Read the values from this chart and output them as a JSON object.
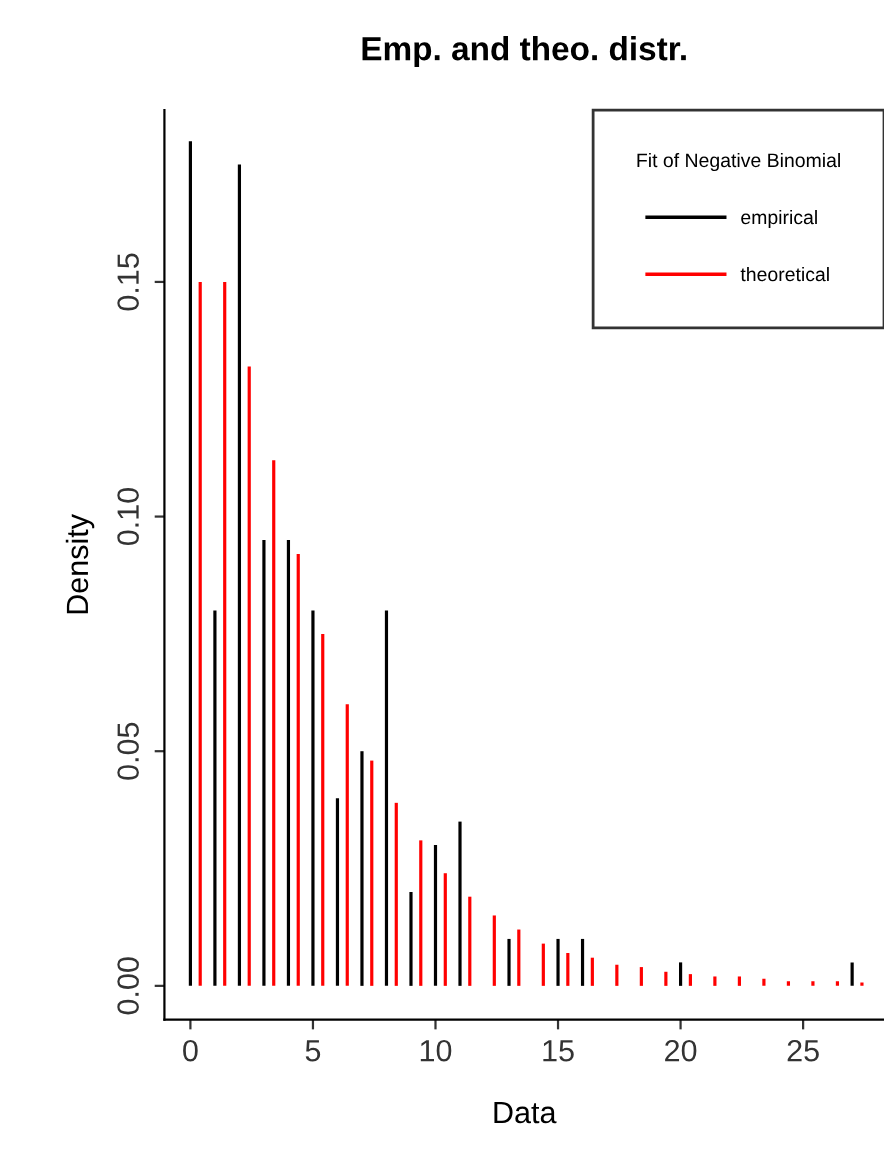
{
  "chart_data": {
    "type": "bar",
    "title": "Emp. and theo. distr.",
    "xlabel": "Data",
    "ylabel": "Density",
    "legend_title": "Fit of Negative Binomial",
    "legend": "top right",
    "grid": false,
    "xlim": [
      -1.06,
      28.3
    ],
    "xticks": [
      0,
      5,
      10,
      15,
      20,
      25
    ],
    "ylim": [
      -0.0072,
      0.1866
    ],
    "yticks": [
      {
        "value": 0,
        "label": "0.00"
      },
      {
        "value": 0.05,
        "label": "0.05"
      },
      {
        "value": 0.1,
        "label": "0.10"
      },
      {
        "value": 0.15,
        "label": "0.15"
      }
    ],
    "series": [
      {
        "name": "empirical",
        "color": "#000000",
        "x": [
          0,
          1,
          2,
          3,
          4,
          5,
          6,
          7,
          8,
          9,
          10,
          11,
          13,
          15,
          16,
          20,
          27
        ],
        "values": [
          0.18,
          0.08,
          0.175,
          0.095,
          0.095,
          0.08,
          0.04,
          0.05,
          0.08,
          0.02,
          0.03,
          0.035,
          0.01,
          0.01,
          0.01,
          0.005,
          0.005
        ]
      },
      {
        "name": "theoretical",
        "color": "#ff0000",
        "x": [
          0.4,
          1.4,
          2.4,
          3.4,
          4.4,
          5.4,
          6.4,
          7.4,
          8.4,
          9.4,
          10.4,
          11.4,
          12.4,
          13.4,
          14.4,
          15.4,
          16.4,
          17.4,
          18.4,
          19.4,
          20.4,
          21.4,
          22.4,
          23.4,
          24.4,
          25.4,
          26.4,
          27.4
        ],
        "values": [
          0.15,
          0.15,
          0.132,
          0.112,
          0.092,
          0.075,
          0.06,
          0.048,
          0.039,
          0.031,
          0.024,
          0.019,
          0.015,
          0.012,
          0.009,
          0.007,
          0.006,
          0.0045,
          0.004,
          0.003,
          0.0025,
          0.002,
          0.002,
          0.0015,
          0.001,
          0.001,
          0.001,
          0.0007
        ]
      }
    ]
  }
}
